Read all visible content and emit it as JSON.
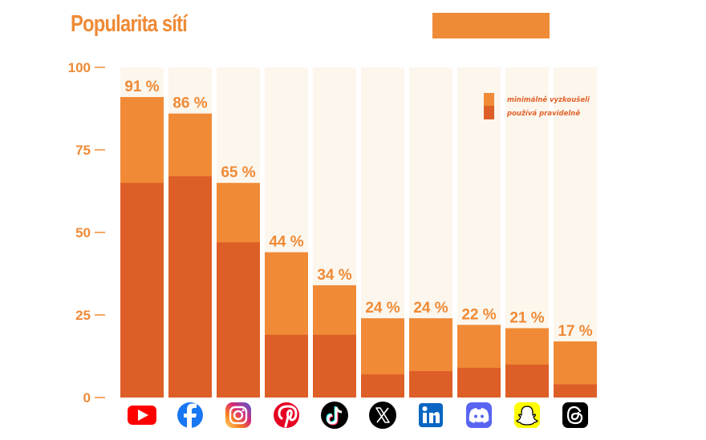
{
  "title": "Popularita sítí",
  "colors": {
    "accent": "#ef8a36",
    "tried": "#f08a36",
    "regular": "#dd5f27",
    "column_bg": "#fcf6ed"
  },
  "chart_data": {
    "type": "bar",
    "stacked_overlay": true,
    "title": "Popularita sítí",
    "ylim": [
      0,
      100
    ],
    "yticks": [
      0,
      25,
      50,
      75,
      100
    ],
    "categories": [
      "YouTube",
      "Facebook",
      "Instagram",
      "Pinterest",
      "TikTok",
      "X",
      "LinkedIn",
      "Discord",
      "Snapchat",
      "Threads"
    ],
    "icons": [
      "youtube-icon",
      "facebook-icon",
      "instagram-icon",
      "pinterest-icon",
      "tiktok-icon",
      "x-icon",
      "linkedin-icon",
      "discord-icon",
      "snapchat-icon",
      "threads-icon"
    ],
    "series": [
      {
        "name": "minimálně vyzkoušeli",
        "color": "#f08a36",
        "values": [
          91,
          86,
          65,
          44,
          34,
          24,
          24,
          22,
          21,
          17
        ]
      },
      {
        "name": "používá pravidelně",
        "color": "#dd5f27",
        "values": [
          65,
          67,
          47,
          19,
          19,
          7,
          8,
          9,
          10,
          4
        ]
      }
    ],
    "data_labels": [
      "91 %",
      "86 %",
      "65 %",
      "44 %",
      "34 %",
      "24 %",
      "24 %",
      "22 %",
      "21 %",
      "17 %"
    ],
    "legend": {
      "position": "top-right",
      "items": [
        "minimálně vyzkoušeli",
        "používá pravidelně"
      ]
    },
    "grid": false
  }
}
